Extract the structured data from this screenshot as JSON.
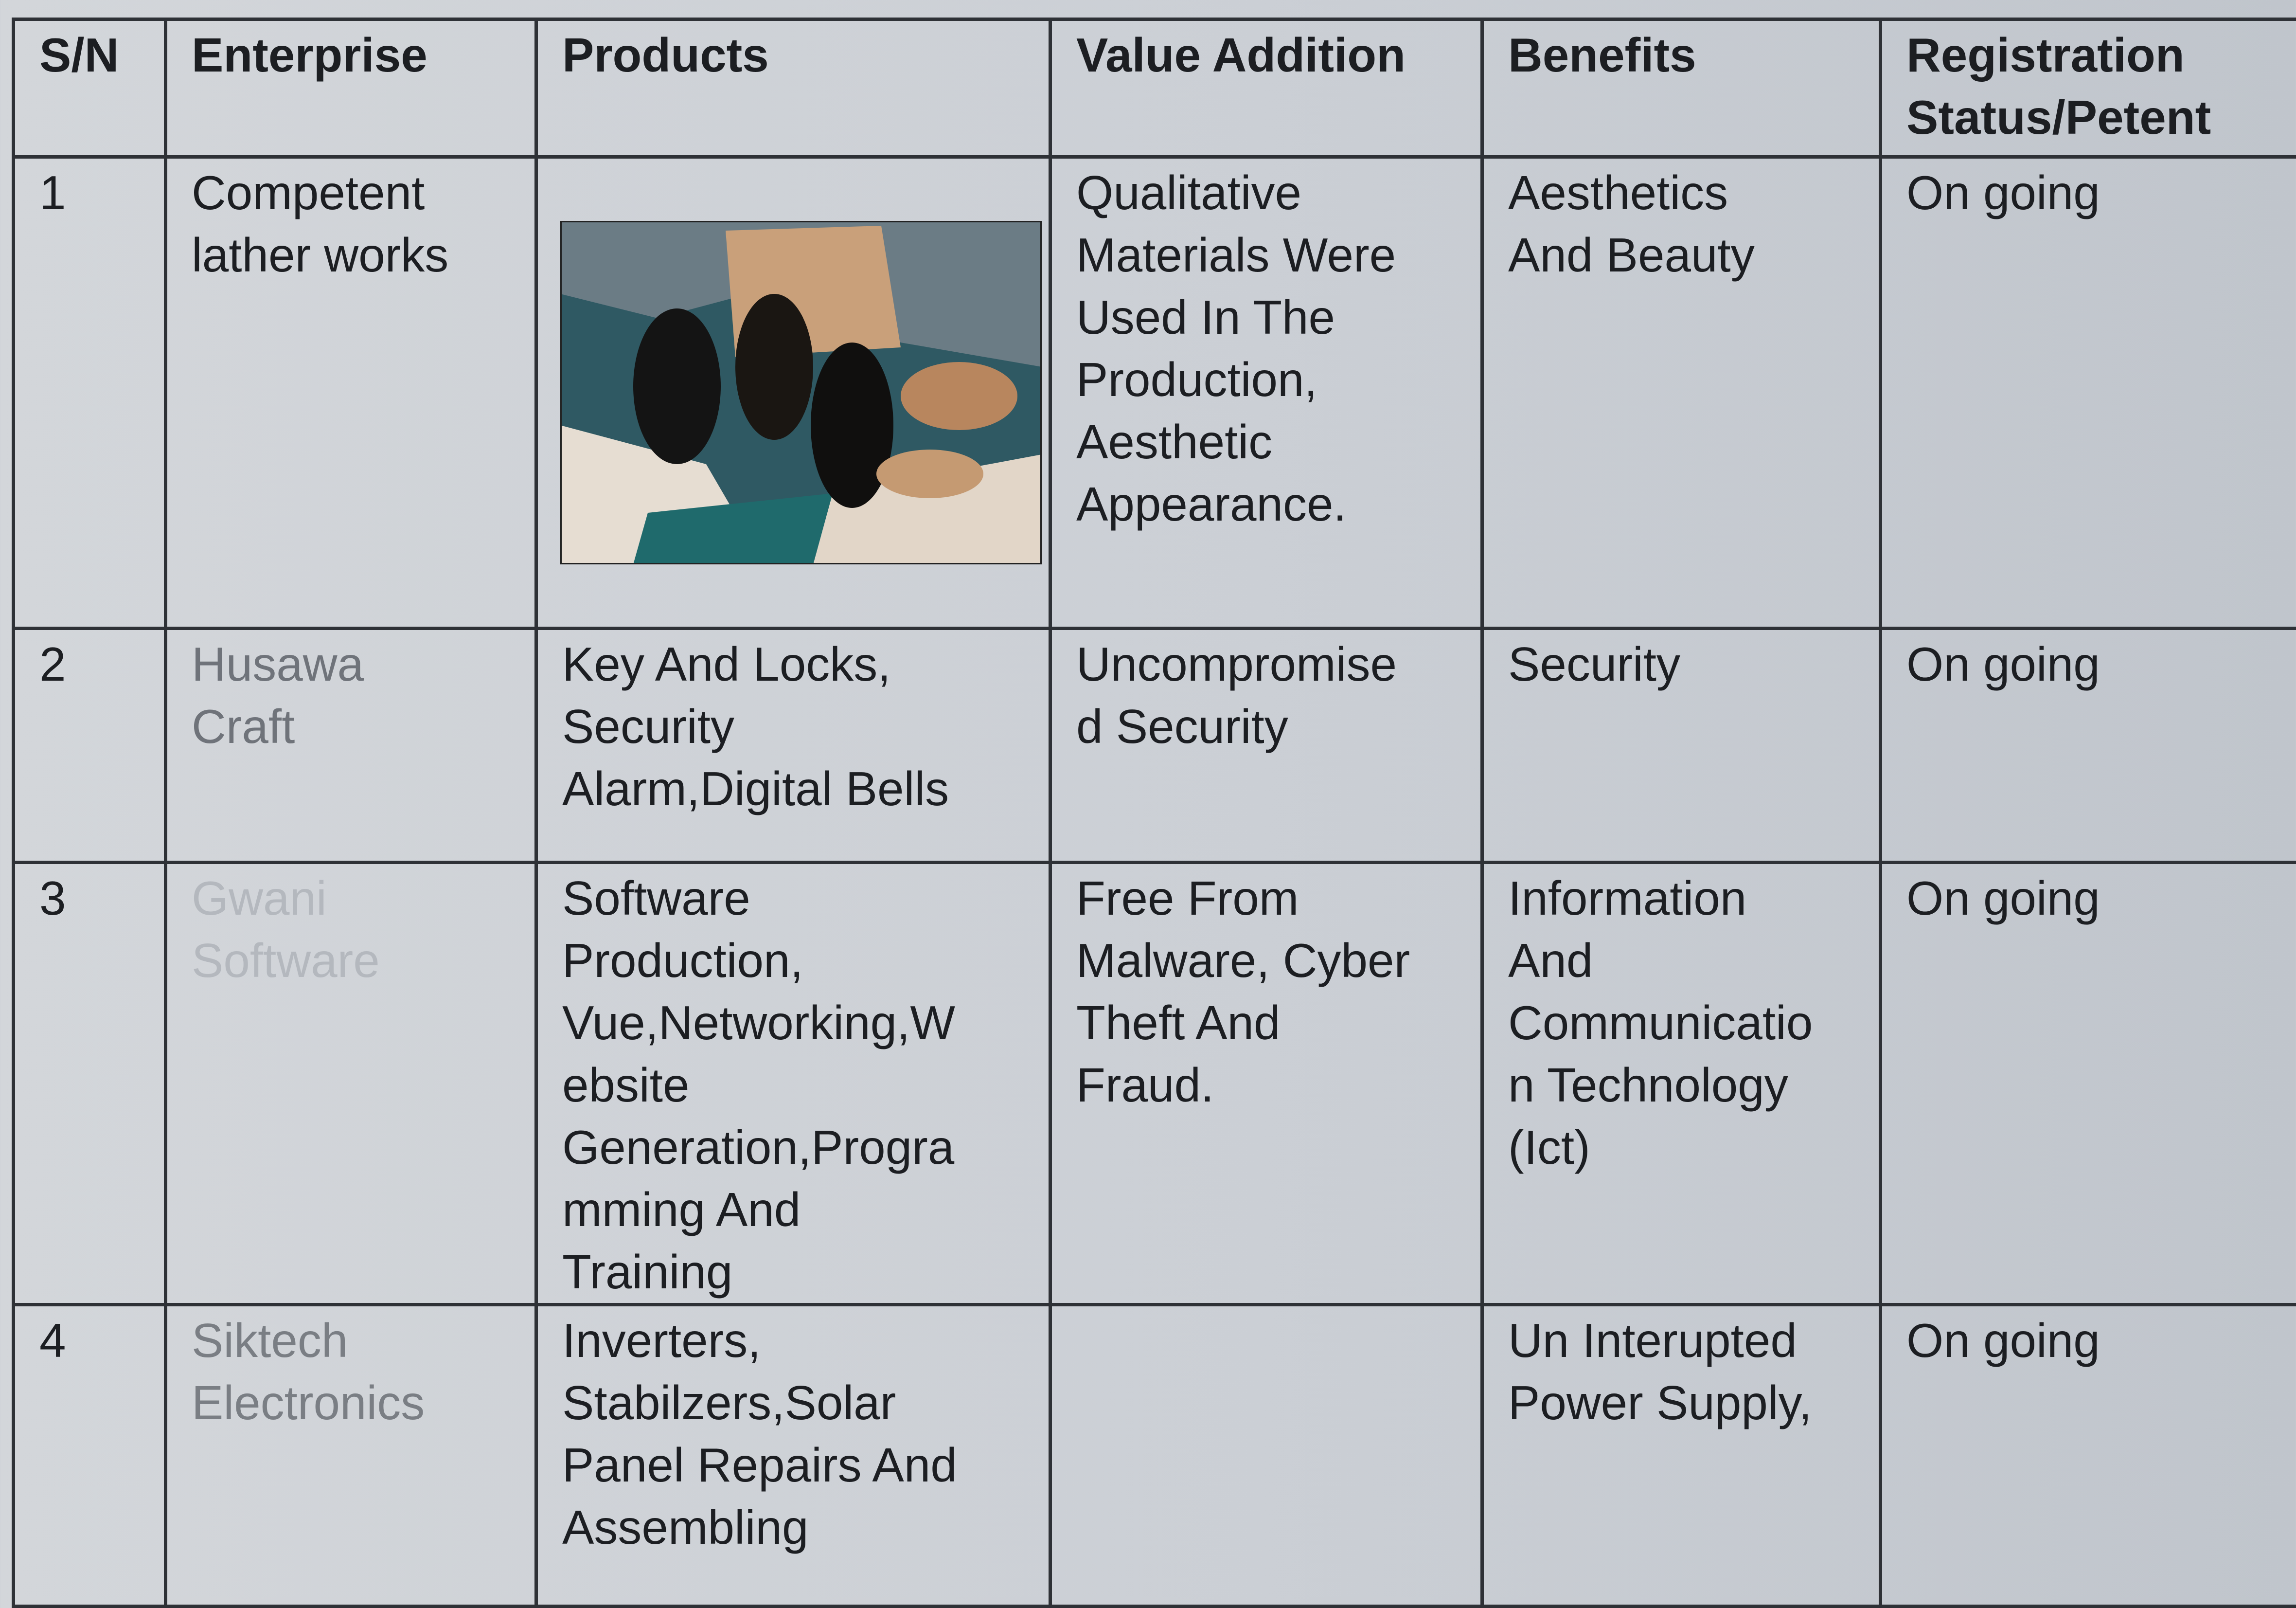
{
  "table": {
    "header": [
      "S/N",
      "Enterprise",
      "Products",
      "Value Addition",
      "Benefits",
      "Registration\nStatus/Petent"
    ],
    "rows": [
      [
        "1",
        "Competent\nlather works",
        null,
        "Qualitative\nMaterials Were\nUsed In The\nProduction,\nAesthetic\nAppearance.",
        "Aesthetics\nAnd Beauty",
        "On going"
      ],
      [
        "2",
        "Husawa\nCraft",
        "Key And Locks,\nSecurity\nAlarm,Digital Bells",
        "Uncompromise\nd Security",
        "Security",
        "On going"
      ],
      [
        "3",
        "Gwani\nSoftware",
        "Software\nProduction,\nVue,Networking,W\nebsite\nGeneration,Progra\nmming And\nTraining",
        "Free From\nMalware, Cyber\nTheft And\nFraud.",
        "Information\nAnd\nCommunicatio\nn Technology\n(Ict)",
        "On going"
      ],
      [
        "4",
        "Siktech\nElectronics",
        "Inverters,\nStabilzers,Solar\nPanel Repairs And\nAssembling",
        null,
        "Un Interupted\nPower Supply,",
        "On going"
      ]
    ]
  }
}
